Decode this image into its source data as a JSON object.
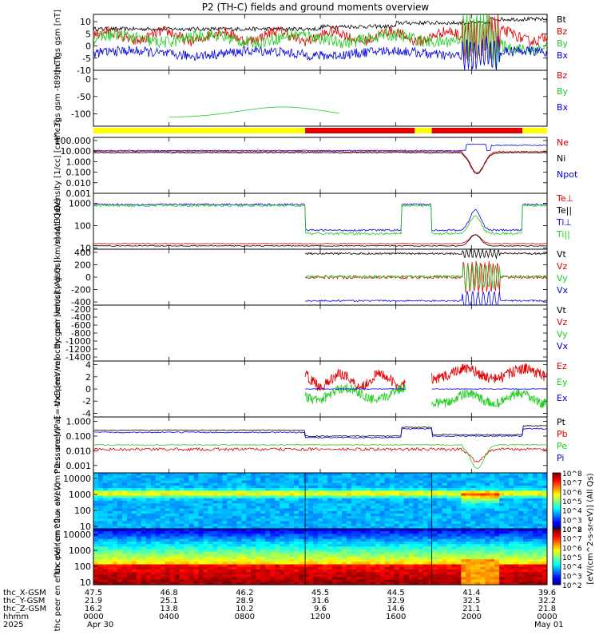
{
  "title": "P2 (TH-C) fields and ground moments overview",
  "colors": {
    "black": "#000000",
    "red": "#e00000",
    "green": "#22cc22",
    "blue": "#0000e0",
    "yellow": "#ffff00"
  },
  "bar_segments": [
    {
      "t0": 0,
      "t1": 11.2,
      "color": "#ffff00"
    },
    {
      "t0": 11.2,
      "t1": 17.0,
      "color": "#e00000"
    },
    {
      "t0": 17.0,
      "t1": 17.9,
      "color": "#ffff00"
    },
    {
      "t0": 17.9,
      "t1": 22.7,
      "color": "#e00000"
    },
    {
      "t0": 22.7,
      "t1": 24,
      "color": "#ffff00"
    }
  ],
  "colorbar": {
    "label": "[eV/(cm^2-s-sr-eV)] (All Qs)",
    "ticks_upper": [
      "10^8",
      "10^7",
      "10^6",
      "10^5",
      "10^4",
      "10^3",
      "10^2"
    ],
    "ticks_lower": [
      "10^8",
      "10^7",
      "10^6",
      "10^5",
      "10^4",
      "10^3",
      "10^2"
    ]
  },
  "chart_data": [
    {
      "type": "line",
      "ylabel": "thc fgs gsm [nT]",
      "yticks": [
        "10",
        "5",
        "0",
        "-5",
        "-10"
      ],
      "ylim": [
        -10,
        13
      ],
      "series": [
        {
          "name": "Bt",
          "color": "#000000"
        },
        {
          "name": "Bz",
          "color": "#e00000"
        },
        {
          "name": "By",
          "color": "#22cc22"
        },
        {
          "name": "Bx",
          "color": "#0000e0"
        }
      ]
    },
    {
      "type": "line",
      "ylabel": "thc fgs gsm -t89 [nT]",
      "yticks": [
        "0",
        "-50",
        "-100"
      ],
      "ylim": [
        -135,
        25
      ],
      "series": [
        {
          "name": "Bz",
          "color": "#e00000"
        },
        {
          "name": "By",
          "color": "#22cc22"
        },
        {
          "name": "Bx",
          "color": "#0000e0"
        }
      ]
    },
    {
      "type": "line",
      "ylabel": "Density [1/cc] [cm^-3]",
      "yticks": [
        "100.000",
        "10.000",
        "1.000",
        "0.100",
        "0.010",
        "0.001"
      ],
      "ylim": [
        -3,
        2.3
      ],
      "log": true,
      "series": [
        {
          "name": "Ne",
          "color": "#e00000"
        },
        {
          "name": "Ni",
          "color": "#000000"
        },
        {
          "name": "Npot",
          "color": "#0000e0"
        }
      ]
    },
    {
      "type": "line",
      "ylabel": "moqt3 [eV]",
      "yticks": [
        "1000",
        "100",
        "10"
      ],
      "ylim": [
        0.95,
        3.45
      ],
      "log": true,
      "series": [
        {
          "name": "Te⊥",
          "color": "#e00000"
        },
        {
          "name": "Te||",
          "color": "#000000"
        },
        {
          "name": "Ti⊥",
          "color": "#0000e0"
        },
        {
          "name": "Ti||",
          "color": "#22cc22"
        }
      ]
    },
    {
      "type": "line",
      "ylabel": "thc peir velocity gsm [km/s] (All Qs)",
      "yticks": [
        "400",
        "200",
        "0",
        "-200",
        "-400"
      ],
      "ylim": [
        -450,
        450
      ],
      "series": [
        {
          "name": "Vt",
          "color": "#000000"
        },
        {
          "name": "Vz",
          "color": "#e00000"
        },
        {
          "name": "Vy",
          "color": "#22cc22"
        },
        {
          "name": "Vx",
          "color": "#0000e0"
        }
      ]
    },
    {
      "type": "line",
      "ylabel": "thc peer velocity gsm [km/s] (All Qs)",
      "yticks": [
        "-200",
        "-400",
        "-600",
        "-800",
        "-1000",
        "-1200",
        "-1400"
      ],
      "ylim": [
        -1500,
        -100
      ],
      "series": [
        {
          "name": "Vt",
          "color": "#000000"
        },
        {
          "name": "Vz",
          "color": "#e00000"
        },
        {
          "name": "Vy",
          "color": "#22cc22"
        },
        {
          "name": "Vx",
          "color": "#0000e0"
        }
      ]
    },
    {
      "type": "line",
      "ylabel": "E=-VxB [mV/m]",
      "yticks": [
        "4",
        "2",
        "0",
        "-2",
        "-4"
      ],
      "ylim": [
        -4.6,
        4.6
      ],
      "series": [
        {
          "name": "Ez",
          "color": "#e00000"
        },
        {
          "name": "Ey",
          "color": "#22cc22"
        },
        {
          "name": "Ex",
          "color": "#0000e0"
        }
      ]
    },
    {
      "type": "line",
      "ylabel": "Pressure [nPa]",
      "yticks": [
        "1.000",
        "0.100",
        "0.010",
        "0.001"
      ],
      "ylim": [
        -3.5,
        0.3
      ],
      "log": true,
      "series": [
        {
          "name": "Pt",
          "color": "#000000"
        },
        {
          "name": "Pb",
          "color": "#e00000"
        },
        {
          "name": "Pe",
          "color": "#22cc22"
        },
        {
          "name": "Pi",
          "color": "#0000e0"
        }
      ]
    },
    {
      "type": "heatmap",
      "ylabel": "thc peir en eflux eV/ (cm^2-s- sr-eV)",
      "yticks": [
        "10000",
        "1000",
        "100",
        "10"
      ],
      "ylim": [
        0.85,
        4.35
      ],
      "log": true
    },
    {
      "type": "heatmap",
      "ylabel": "thc peer en eflux eV/ (cm^2-s- sr-eV)",
      "yticks": [
        "10000",
        "1000",
        "100",
        "10"
      ],
      "ylim": [
        0.85,
        4.35
      ],
      "log": true
    }
  ],
  "xaxis": {
    "rows": [
      {
        "label": "thc_X-GSM",
        "values": [
          "47.5",
          "46.8",
          "46.2",
          "45.5",
          "44.5",
          "41.4",
          "39.6"
        ]
      },
      {
        "label": "thc_Y-GSM",
        "values": [
          "21.9",
          "25.1",
          "28.9",
          "31.6",
          "32.9",
          "32.5",
          "32.2"
        ]
      },
      {
        "label": "thc_Z-GSM",
        "values": [
          "16.2",
          "13.8",
          "10.2",
          "9.6",
          "14.6",
          "21.1",
          "21.8"
        ]
      },
      {
        "label": "hhmm",
        "values": [
          "0000",
          "0400",
          "0800",
          "1200",
          "1600",
          "2000",
          "0000"
        ]
      }
    ],
    "year": "2025",
    "date_start": "Apr 30",
    "date_end": "May 01"
  }
}
